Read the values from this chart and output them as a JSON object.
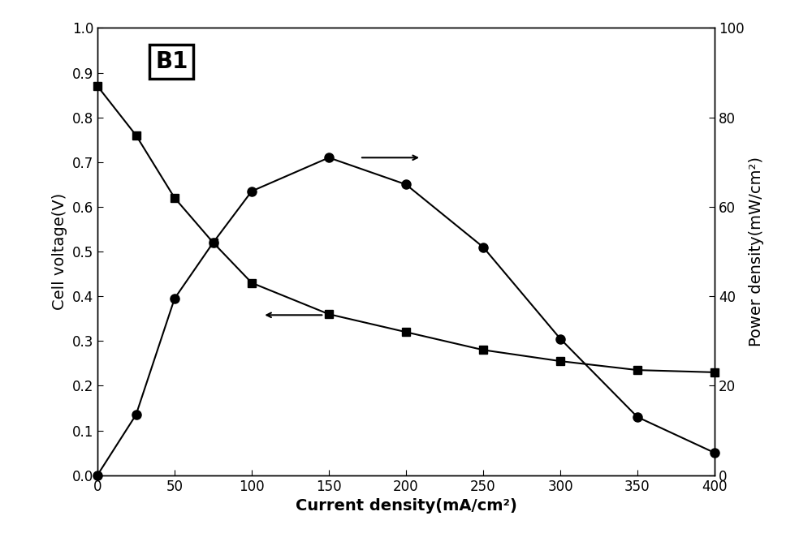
{
  "voltage_x": [
    0,
    25,
    50,
    75,
    100,
    150,
    200,
    250,
    300,
    350,
    400
  ],
  "voltage_y": [
    0.87,
    0.76,
    0.62,
    0.52,
    0.43,
    0.36,
    0.32,
    0.28,
    0.255,
    0.235,
    0.23
  ],
  "power_x": [
    0,
    25,
    50,
    75,
    100,
    150,
    200,
    250,
    300,
    350,
    400
  ],
  "power_y": [
    0,
    13.5,
    39.5,
    52,
    63.5,
    71,
    65,
    51,
    30.5,
    13,
    5
  ],
  "xlabel": "Current density(mA/cm²)",
  "ylabel_left": "Cell voltage(V)",
  "ylabel_right": "Power density(mW/cm²)",
  "xlim": [
    0,
    400
  ],
  "ylim_left": [
    0,
    1.0
  ],
  "ylim_right": [
    0,
    100
  ],
  "label_B1": "B1",
  "bg_color": "#ffffff",
  "line_color": "#000000",
  "label_fontsize": 14,
  "tick_fontsize": 12,
  "marker_size_square": 7,
  "marker_size_circle": 8,
  "linewidth": 1.5
}
